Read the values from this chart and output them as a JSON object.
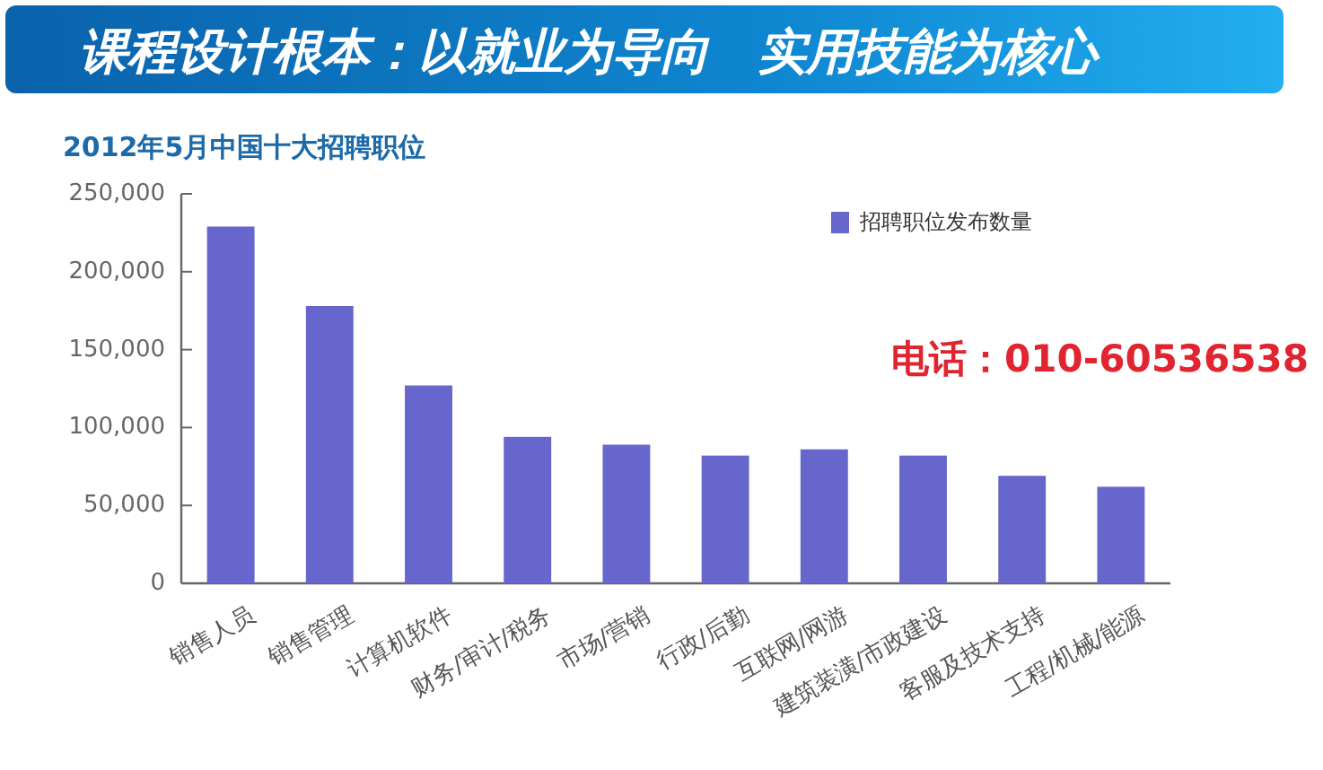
{
  "chart_data": {
    "type": "bar",
    "title": "课程设计根本：以就业为导向　实用技能为核心",
    "subtitle": "2012年5月中国十大招聘职位",
    "categories": [
      "销售人员",
      "销售管理",
      "计算机软件",
      "财务/审计/税务",
      "市场/营销",
      "行政/后勤",
      "互联网/网游",
      "建筑装潢/市政建设",
      "客服及技术支持",
      "工程/机械/能源"
    ],
    "series": [
      {
        "name": "招聘职位发布数量",
        "color": "#6666cc",
        "values": [
          229000,
          178000,
          127000,
          94000,
          89000,
          82000,
          86000,
          82000,
          69000,
          62000
        ]
      }
    ],
    "ylim": [
      0,
      250000
    ],
    "yticks": [
      0,
      {
        "value": 50000,
        "label": "50,000"
      },
      {
        "value": 100000,
        "label": "100,000"
      },
      {
        "value": 150000,
        "label": "150,000"
      },
      {
        "value": 200000,
        "label": "200,000"
      },
      {
        "value": 250000,
        "label": "250,000"
      }
    ],
    "legend": "top right",
    "annotations": [
      "电话：010-60536538"
    ]
  }
}
